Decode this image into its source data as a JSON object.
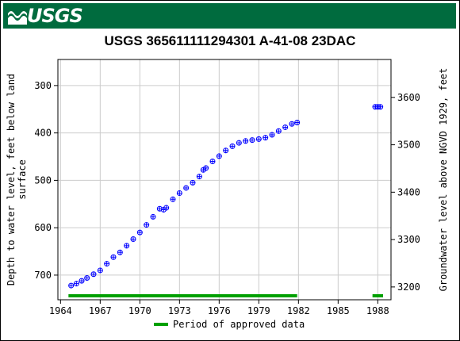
{
  "header": {
    "logo_text": "USGS",
    "title": "USGS 365611111294301 A-41-08 23DAC"
  },
  "colors": {
    "banner": "#006b3e",
    "series": "#0000ff",
    "approved": "#00a000",
    "grid": "#cccccc"
  },
  "chart_data": {
    "type": "scatter",
    "title": "USGS 365611111294301 A-41-08 23DAC",
    "ylabel": "Depth to water level, feet below land surface",
    "ylabel_lines": [
      "Depth to water level, feet below land",
      "surface"
    ],
    "y2label": "Groundwater level above NGVD 1929, feet",
    "xlim": [
      1963.8,
      1989.0
    ],
    "ylim": [
      752,
      245
    ],
    "y2lim": [
      3173,
      3680
    ],
    "x_ticks": [
      1964,
      1967,
      1970,
      1973,
      1976,
      1979,
      1982,
      1985,
      1988
    ],
    "y_ticks": [
      300,
      400,
      500,
      600,
      700
    ],
    "y2_ticks": [
      3200,
      3300,
      3400,
      3500,
      3600
    ],
    "grid": true,
    "series": [
      {
        "marker": "circle-plus",
        "x": [
          1964.8,
          1965.2,
          1965.6,
          1966.0,
          1966.5,
          1967.0,
          1967.5,
          1968.0,
          1968.5,
          1969.0,
          1969.5,
          1970.0,
          1970.5,
          1971.0,
          1971.5,
          1971.8,
          1972.0,
          1972.5,
          1973.0,
          1973.5,
          1974.0,
          1974.5,
          1974.8,
          1975.0,
          1975.5,
          1976.0,
          1976.5,
          1977.0,
          1977.5,
          1978.0,
          1978.5,
          1979.0,
          1979.5,
          1980.0,
          1980.5,
          1981.0,
          1981.5,
          1981.9,
          1987.8,
          1988.0,
          1988.2
        ],
        "values": [
          722,
          718,
          712,
          706,
          698,
          690,
          676,
          662,
          652,
          638,
          624,
          610,
          594,
          577,
          560,
          562,
          558,
          540,
          527,
          516,
          505,
          492,
          478,
          474,
          460,
          449,
          437,
          428,
          421,
          417,
          415,
          413,
          410,
          404,
          396,
          388,
          381,
          378,
          345,
          345,
          345
        ]
      }
    ],
    "approved_periods": [
      [
        1964.6,
        1981.9
      ],
      [
        1987.6,
        1988.4
      ]
    ],
    "legend": {
      "label": "Period of approved data",
      "placement": "bottom-center"
    }
  }
}
